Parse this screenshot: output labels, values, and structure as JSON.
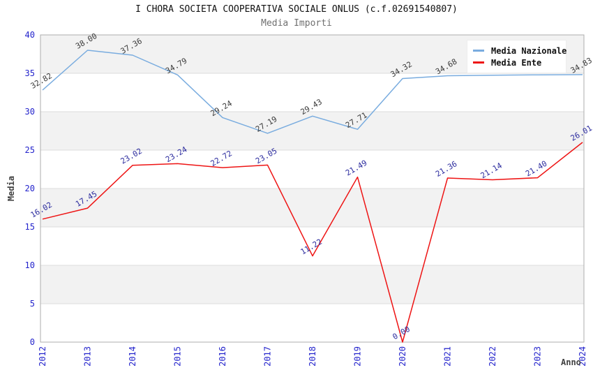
{
  "header": {
    "title": "I CHORA SOCIETA COOPERATIVA SOCIALE ONLUS (c.f.02691540807)",
    "subtitle": "Media Importi"
  },
  "chart_data": {
    "type": "line",
    "title": "I CHORA SOCIETA COOPERATIVA SOCIALE ONLUS (c.f.02691540807)",
    "subtitle": "Media Importi",
    "xlabel": "Anno",
    "ylabel": "Media",
    "x": [
      2012,
      2013,
      2014,
      2015,
      2016,
      2017,
      2018,
      2019,
      2020,
      2021,
      2022,
      2023,
      2024
    ],
    "series": [
      {
        "name": "Media Nazionale",
        "color": "#79ACDF",
        "label_color": "#3A3A3A",
        "values": [
          32.82,
          38.0,
          37.36,
          34.79,
          29.24,
          27.19,
          29.43,
          27.71,
          34.32,
          34.68,
          34.75,
          34.8,
          34.83
        ],
        "labels": [
          "32.82",
          "38.00",
          "37.36",
          "34.79",
          "29.24",
          "27.19",
          "29.43",
          "27.71",
          "34.32",
          "34.68",
          "",
          "",
          "34.83"
        ]
      },
      {
        "name": "Media Ente",
        "color": "#EE1414",
        "label_color": "#2B2B9E",
        "values": [
          16.02,
          17.45,
          23.02,
          23.24,
          22.72,
          23.05,
          11.22,
          21.49,
          0.0,
          21.36,
          21.14,
          21.4,
          26.01
        ],
        "labels": [
          "16.02",
          "17.45",
          "23.02",
          "23.24",
          "22.72",
          "23.05",
          "11.22",
          "21.49",
          "0.00",
          "21.36",
          "21.14",
          "21.40",
          "26.01"
        ]
      }
    ],
    "ylim": [
      0,
      40
    ],
    "ytick_step": 5,
    "yticks": [
      0,
      5,
      10,
      15,
      20,
      25,
      30,
      35,
      40
    ],
    "grid": true,
    "legend_position": "top-right",
    "shaded_bands": [
      [
        5,
        10
      ],
      [
        15,
        20
      ],
      [
        25,
        30
      ],
      [
        35,
        40
      ]
    ],
    "colors": {
      "band_fill": "#F2F2F2",
      "gridline": "#DCDCDC",
      "plot_border": "#ADADAD",
      "axis_tick_text": "#2323CC",
      "title_text": "#111111",
      "subtitle_text": "#707070",
      "axis_title_text": "#404040"
    }
  }
}
